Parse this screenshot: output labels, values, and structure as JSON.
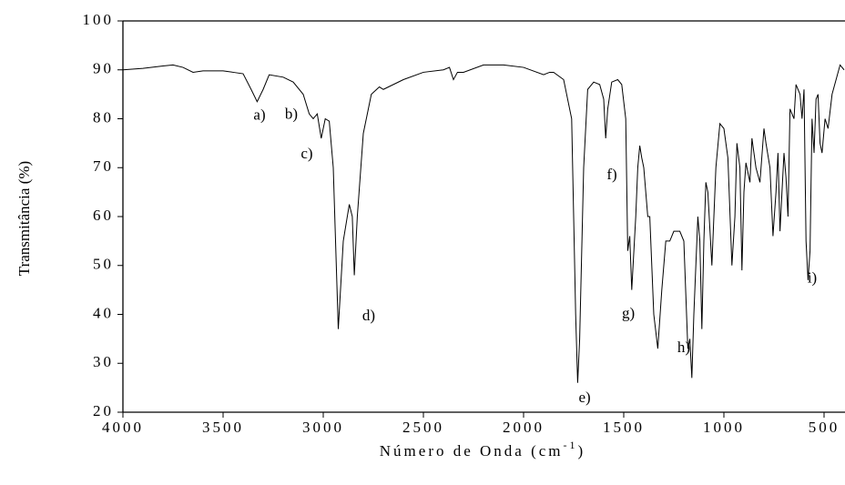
{
  "chart_data": {
    "type": "line",
    "xlabel": [
      "Número de Onda (cm",
      "-1",
      ")"
    ],
    "ylabel": "Transmitância (%)",
    "xlim": [
      4000,
      400
    ],
    "ylim": [
      20,
      100
    ],
    "xticks": [
      4000,
      3500,
      3000,
      2500,
      2000,
      1500,
      1000,
      500
    ],
    "yticks": [
      20,
      30,
      40,
      50,
      60,
      70,
      80,
      90,
      100
    ],
    "series": [
      {
        "color": "#000000",
        "x": [
          4000,
          3900,
          3800,
          3750,
          3700,
          3650,
          3600,
          3500,
          3450,
          3400,
          3360,
          3330,
          3300,
          3270,
          3200,
          3150,
          3100,
          3070,
          3050,
          3030,
          3010,
          2990,
          2970,
          2950,
          2925,
          2900,
          2870,
          2855,
          2845,
          2830,
          2800,
          2760,
          2720,
          2700,
          2600,
          2500,
          2400,
          2370,
          2350,
          2330,
          2300,
          2200,
          2100,
          2000,
          1900,
          1870,
          1850,
          1800,
          1760,
          1740,
          1730,
          1720,
          1700,
          1680,
          1650,
          1620,
          1600,
          1590,
          1580,
          1560,
          1530,
          1510,
          1490,
          1480,
          1470,
          1460,
          1440,
          1430,
          1420,
          1410,
          1400,
          1380,
          1370,
          1350,
          1330,
          1310,
          1290,
          1270,
          1250,
          1220,
          1200,
          1180,
          1170,
          1160,
          1150,
          1130,
          1120,
          1110,
          1100,
          1090,
          1080,
          1060,
          1040,
          1020,
          1000,
          980,
          960,
          945,
          935,
          920,
          910,
          900,
          890,
          870,
          860,
          840,
          820,
          800,
          790,
          770,
          755,
          740,
          730,
          720,
          710,
          700,
          690,
          680,
          670,
          650,
          640,
          620,
          610,
          600,
          590,
          580,
          570,
          560,
          550,
          540,
          530,
          520,
          510,
          495,
          480,
          460,
          440,
          420,
          400
        ],
        "values": [
          90,
          90.3,
          90.8,
          91,
          90.5,
          89.5,
          89.8,
          89.8,
          89.5,
          89.2,
          86,
          83.5,
          86,
          89,
          88.5,
          87.5,
          85,
          81,
          80,
          81,
          76,
          80,
          79.5,
          70,
          37,
          55,
          62.5,
          60,
          48,
          60,
          77,
          85,
          86.5,
          86,
          88,
          89.5,
          90,
          90.5,
          88,
          89.5,
          89.5,
          91,
          91,
          90.5,
          89,
          89.5,
          89.5,
          88,
          80,
          40,
          26,
          35,
          70,
          86,
          87.5,
          87,
          84,
          76,
          82,
          87.5,
          88,
          87,
          80,
          53,
          56,
          45,
          60,
          70,
          74.5,
          72,
          70,
          60,
          60,
          40,
          33,
          45,
          55,
          55,
          57,
          57,
          55,
          33,
          35,
          27,
          40,
          60,
          55,
          37,
          55,
          67,
          65,
          50,
          70,
          79,
          78,
          72,
          50,
          60,
          75,
          70,
          49,
          65,
          71,
          67,
          76,
          70,
          67,
          78,
          75,
          70,
          56,
          65,
          73,
          57,
          65,
          73,
          68,
          60,
          82,
          80,
          87,
          85,
          80,
          86,
          55,
          47,
          53,
          80,
          73,
          84,
          85,
          75,
          73,
          80,
          78,
          85,
          88,
          91,
          90
        ]
      }
    ],
    "annotations": [
      {
        "text": "a)",
        "x": 3318,
        "y": 80.5
      },
      {
        "text": "b)",
        "x": 3159,
        "y": 80.7
      },
      {
        "text": "c)",
        "x": 3082,
        "y": 72.6
      },
      {
        "text": "d)",
        "x": 2773,
        "y": 39.5
      },
      {
        "text": "e)",
        "x": 1695,
        "y": 22.8
      },
      {
        "text": "f)",
        "x": 1559,
        "y": 68.4
      },
      {
        "text": "g)",
        "x": 1477,
        "y": 40
      },
      {
        "text": "h)",
        "x": 1200,
        "y": 33
      },
      {
        "text": "i)",
        "x": 559,
        "y": 47.2
      }
    ]
  }
}
